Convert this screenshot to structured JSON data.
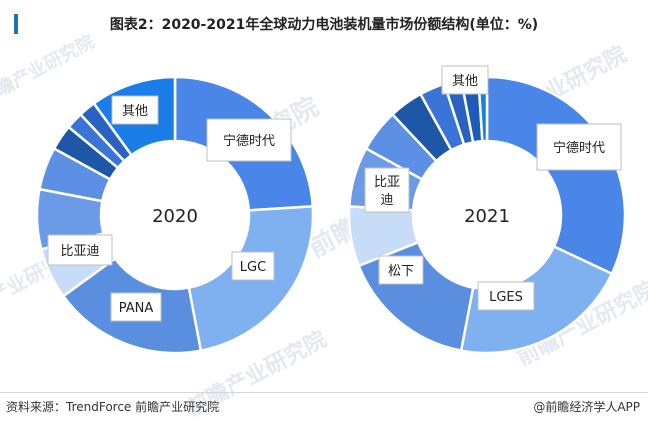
{
  "title": "图表2：2020-2021年全球动力电池装机量市场份额结构(单位：%)",
  "source": "资料来源：TrendForce 前瞻产业研究院",
  "credit": "@前瞻经济学人APP",
  "watermark": "前瞻产业研究院",
  "chart_data": [
    {
      "type": "donut",
      "center_label": "2020",
      "segments": [
        {
          "name": "宁德时代",
          "value": 24,
          "color": "#4a86e8",
          "labeled": true
        },
        {
          "name": "LGC",
          "value": 23,
          "color": "#7fb0ef",
          "labeled": true
        },
        {
          "name": "PANA",
          "value": 18,
          "color": "#5a8fe0",
          "labeled": true
        },
        {
          "name": "比亚迪",
          "value": 6,
          "color": "#c7dcf7",
          "labeled": true
        },
        {
          "name": "",
          "value": 7,
          "color": "#6b9ae6",
          "labeled": false
        },
        {
          "name": "",
          "value": 5,
          "color": "#5b90e4",
          "labeled": false
        },
        {
          "name": "",
          "value": 3,
          "color": "#1e56a8",
          "labeled": false
        },
        {
          "name": "",
          "value": 2,
          "color": "#3a74d6",
          "labeled": false
        },
        {
          "name": "",
          "value": 2,
          "color": "#2a62c2",
          "labeled": false
        },
        {
          "name": "其他",
          "value": 10,
          "color": "#1a7de8",
          "labeled": true
        }
      ]
    },
    {
      "type": "donut",
      "center_label": "2021",
      "segments": [
        {
          "name": "宁德时代",
          "value": 32,
          "color": "#4a86e8",
          "labeled": true
        },
        {
          "name": "LGES",
          "value": 21,
          "color": "#7fb0ef",
          "labeled": true
        },
        {
          "name": "松下",
          "value": 16,
          "color": "#5a8fe0",
          "labeled": true
        },
        {
          "name": "比亚迪",
          "value": 7,
          "color": "#c7dcf7",
          "labeled": true
        },
        {
          "name": "",
          "value": 7,
          "color": "#6b9ae6",
          "labeled": false
        },
        {
          "name": "",
          "value": 5,
          "color": "#5b90e4",
          "labeled": false
        },
        {
          "name": "",
          "value": 4,
          "color": "#1e56a8",
          "labeled": false
        },
        {
          "name": "",
          "value": 3,
          "color": "#3a74d6",
          "labeled": false
        },
        {
          "name": "",
          "value": 2,
          "color": "#2a62c2",
          "labeled": false
        },
        {
          "name": "",
          "value": 2,
          "color": "#1d5bb8",
          "labeled": false
        },
        {
          "name": "其他",
          "value": 1,
          "color": "#1a7de8",
          "labeled": true
        }
      ]
    }
  ]
}
